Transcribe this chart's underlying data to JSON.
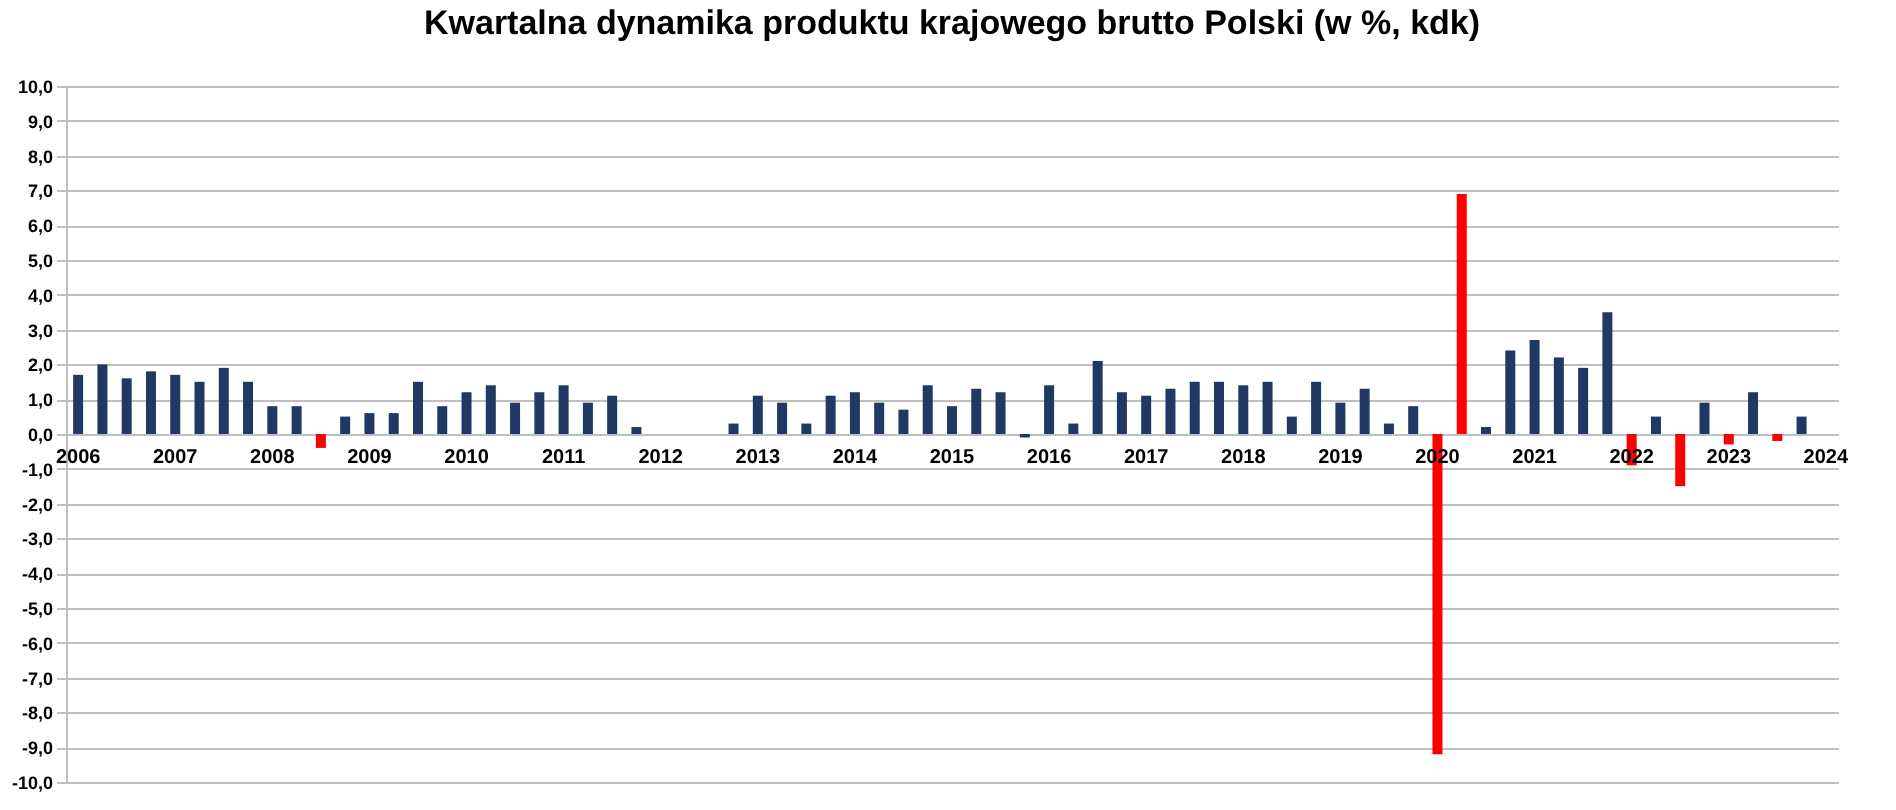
{
  "chart_data": {
    "type": "bar",
    "title": "Kwartalna dynamika produktu krajowego brutto Polski (w %, kdk)",
    "categories": [
      "2006",
      null,
      null,
      null,
      "2007",
      null,
      null,
      null,
      "2008",
      null,
      null,
      null,
      "2009",
      null,
      null,
      null,
      "2010",
      null,
      null,
      null,
      "2011",
      null,
      null,
      null,
      "2012",
      null,
      null,
      null,
      "2013",
      null,
      null,
      null,
      "2014",
      null,
      null,
      null,
      "2015",
      null,
      null,
      null,
      "2016",
      null,
      null,
      null,
      "2017",
      null,
      null,
      null,
      "2018",
      null,
      null,
      null,
      "2019",
      null,
      null,
      null,
      "2020",
      null,
      null,
      null,
      "2021",
      null,
      null,
      null,
      "2022",
      null,
      null,
      null,
      "2023",
      null,
      null,
      null,
      "2024"
    ],
    "values": [
      1.7,
      2.0,
      1.6,
      1.8,
      1.7,
      1.5,
      1.9,
      1.5,
      0.8,
      0.8,
      -0.4,
      0.5,
      0.6,
      0.6,
      1.5,
      0.8,
      1.2,
      1.4,
      0.9,
      1.2,
      1.4,
      0.9,
      1.1,
      0.2,
      0,
      0,
      0,
      0.3,
      1.1,
      0.9,
      0.3,
      1.1,
      1.2,
      0.9,
      0.7,
      1.4,
      0.8,
      1.3,
      1.2,
      -0.1,
      1.4,
      0.3,
      2.1,
      1.2,
      1.1,
      1.3,
      1.5,
      1.5,
      1.4,
      1.5,
      0.5,
      1.5,
      0.9,
      1.3,
      0.3,
      0.8,
      -9.2,
      6.9,
      0.2,
      2.4,
      2.7,
      2.2,
      1.9,
      3.5,
      -0.9,
      0.5,
      -1.5,
      0.9,
      -0.3,
      1.2,
      -0.2,
      0.5,
      null
    ],
    "colors": [
      "#1f3864",
      "#1f3864",
      "#1f3864",
      "#1f3864",
      "#1f3864",
      "#1f3864",
      "#1f3864",
      "#1f3864",
      "#1f3864",
      "#1f3864",
      "#ff0000",
      "#1f3864",
      "#1f3864",
      "#1f3864",
      "#1f3864",
      "#1f3864",
      "#1f3864",
      "#1f3864",
      "#1f3864",
      "#1f3864",
      "#1f3864",
      "#1f3864",
      "#1f3864",
      "#1f3864",
      "#1f3864",
      "#1f3864",
      "#1f3864",
      "#1f3864",
      "#1f3864",
      "#1f3864",
      "#1f3864",
      "#1f3864",
      "#1f3864",
      "#1f3864",
      "#1f3864",
      "#1f3864",
      "#1f3864",
      "#1f3864",
      "#1f3864",
      "#1f3864",
      "#1f3864",
      "#1f3864",
      "#1f3864",
      "#1f3864",
      "#1f3864",
      "#1f3864",
      "#1f3864",
      "#1f3864",
      "#1f3864",
      "#1f3864",
      "#1f3864",
      "#1f3864",
      "#1f3864",
      "#1f3864",
      "#1f3864",
      "#1f3864",
      "#ff0000",
      "#ff0000",
      "#1f3864",
      "#1f3864",
      "#1f3864",
      "#1f3864",
      "#1f3864",
      "#1f3864",
      "#ff0000",
      "#1f3864",
      "#ff0000",
      "#1f3864",
      "#ff0000",
      "#1f3864",
      "#ff0000",
      "#1f3864",
      "#1f3864"
    ],
    "ylim": [
      -10,
      10
    ],
    "yticks": [
      {
        "value": -10,
        "label": "-10,0"
      },
      {
        "value": -9,
        "label": "-9,0"
      },
      {
        "value": -8,
        "label": "-8,0"
      },
      {
        "value": -7,
        "label": "-7,0"
      },
      {
        "value": -6,
        "label": "-6,0"
      },
      {
        "value": -5,
        "label": "-5,0"
      },
      {
        "value": -4,
        "label": "-4,0"
      },
      {
        "value": -3,
        "label": "-3,0"
      },
      {
        "value": -2,
        "label": "-2,0"
      },
      {
        "value": -1,
        "label": "-1,0"
      },
      {
        "value": 0,
        "label": "0,0"
      },
      {
        "value": 1,
        "label": "1,0"
      },
      {
        "value": 2,
        "label": "2,0"
      },
      {
        "value": 3,
        "label": "3,0"
      },
      {
        "value": 4,
        "label": "4,0"
      },
      {
        "value": 5,
        "label": "5,0"
      },
      {
        "value": 6,
        "label": "6,0"
      },
      {
        "value": 7,
        "label": "7,0"
      },
      {
        "value": 8,
        "label": "8,0"
      },
      {
        "value": 9,
        "label": "9,0"
      },
      {
        "value": 10,
        "label": "10,0"
      }
    ],
    "grid": "y"
  }
}
